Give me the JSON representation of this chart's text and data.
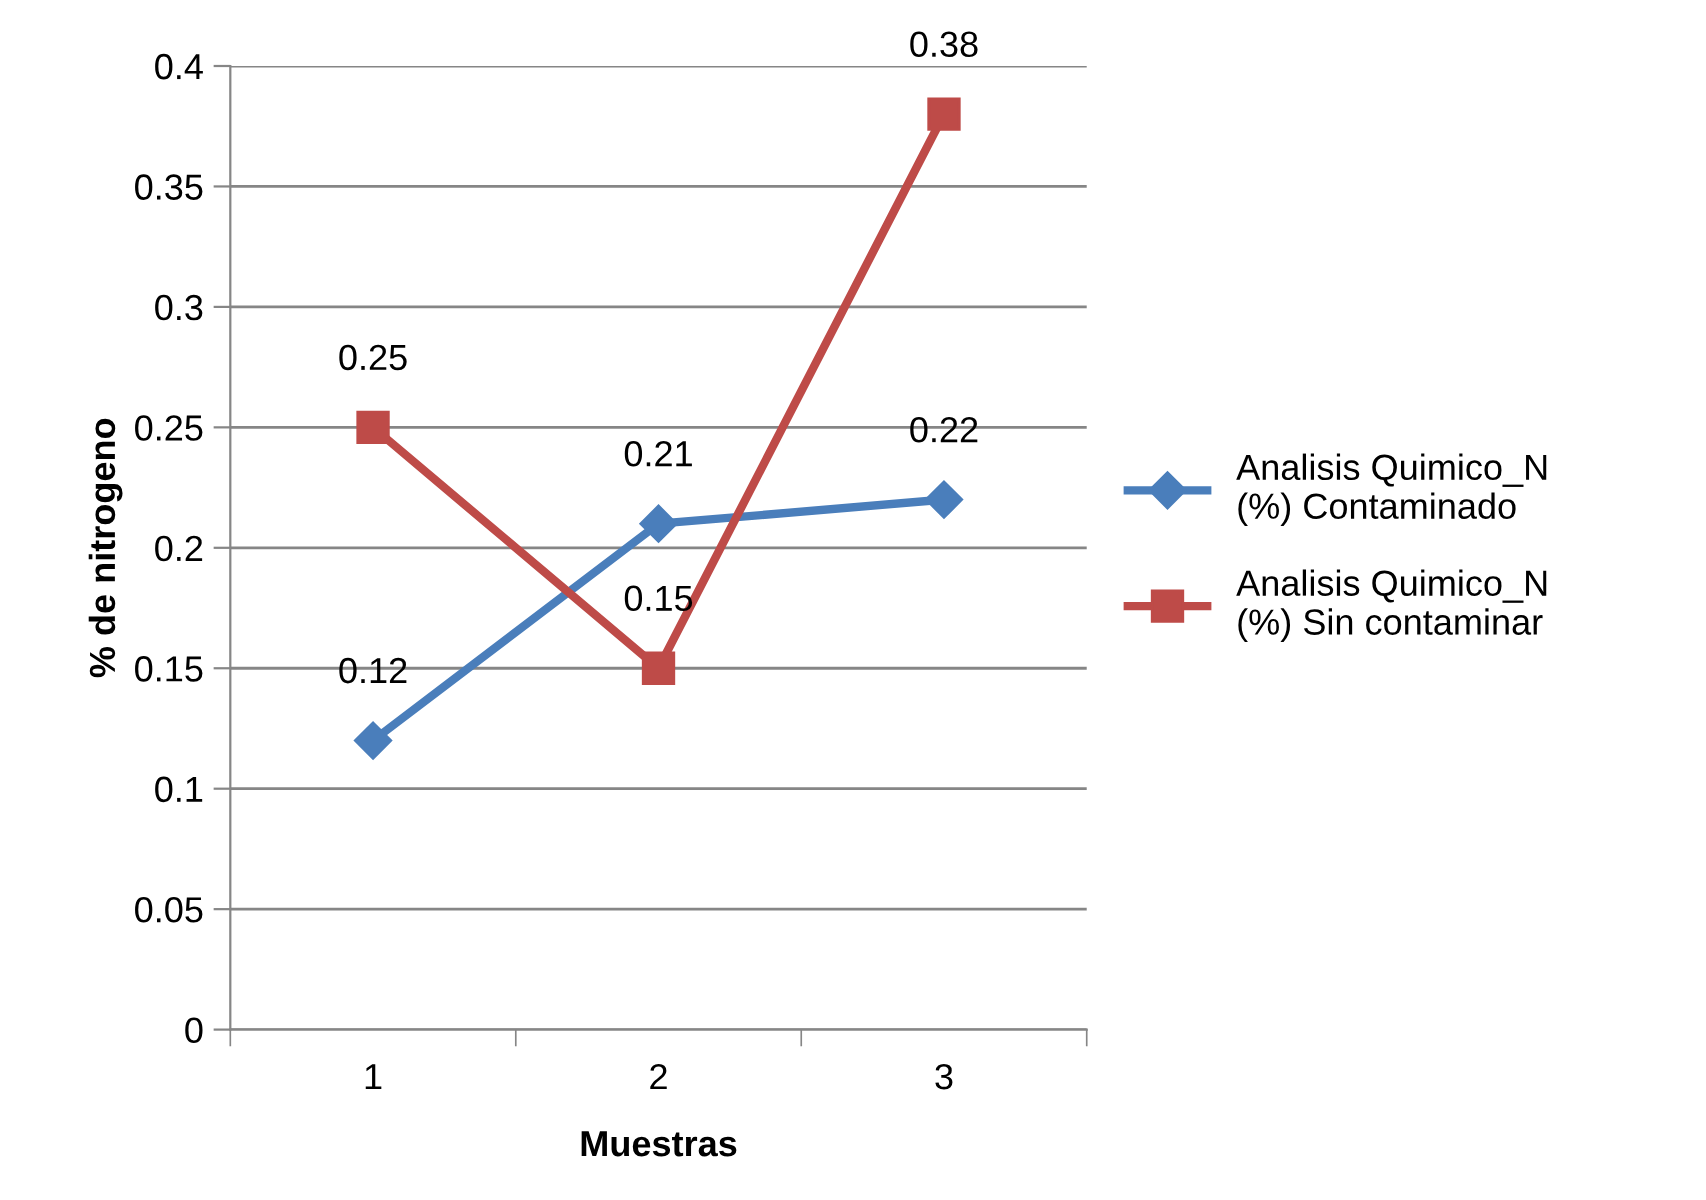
{
  "chart_data": {
    "type": "line",
    "xlabel": "Muestras",
    "ylabel": "% de nitrogeno",
    "categories": [
      "1",
      "2",
      "3"
    ],
    "series": [
      {
        "name": "Analisis Quimico_N (%) Contaminado",
        "color": "#4a7ebb",
        "marker": "diamond",
        "values": [
          0.12,
          0.21,
          0.22
        ]
      },
      {
        "name": "Analisis Quimico_N (%) Sin contaminar",
        "color": "#be4b48",
        "marker": "square",
        "values": [
          0.25,
          0.15,
          0.38
        ]
      }
    ],
    "ylim": [
      0,
      0.4
    ],
    "yticks": [
      0,
      0.05,
      0.1,
      0.15,
      0.2,
      0.25,
      0.3,
      0.35,
      0.4
    ],
    "grid": "y",
    "legend": "right",
    "data_labels": true,
    "line_style": "solid"
  }
}
